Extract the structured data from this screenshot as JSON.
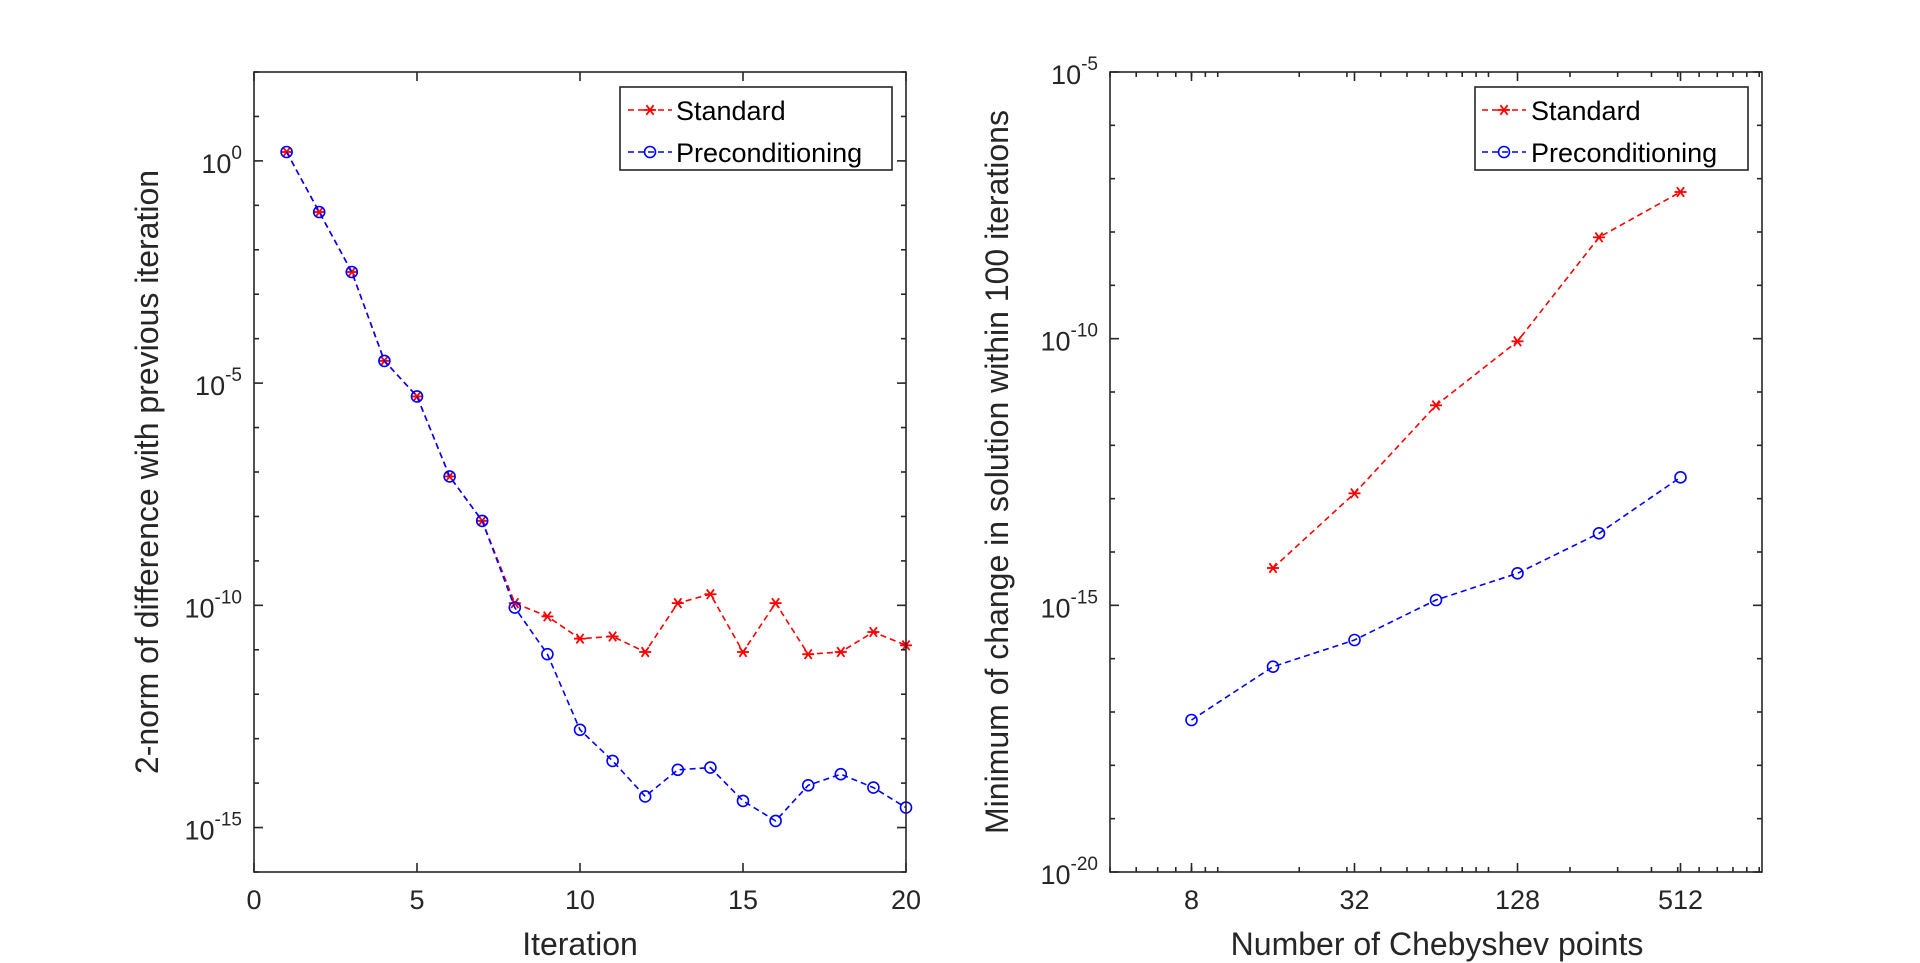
{
  "colors": {
    "standard": "#ff0000",
    "preconditioning": "#0000ff",
    "axis": "#262626"
  },
  "chart_data": [
    {
      "type": "line",
      "xlabel": "Iteration",
      "ylabel": "2-norm of difference with previous iteration",
      "x_scale": "linear",
      "y_scale": "log",
      "xlim": [
        0,
        20
      ],
      "ylim_exp": [
        -16,
        2
      ],
      "x_ticks": [
        0,
        5,
        10,
        15,
        20
      ],
      "y_ticks_exp": [
        -15,
        -10,
        -5,
        0
      ],
      "legend_position": "top-right",
      "series": [
        {
          "name": "Standard",
          "marker": "asterisk",
          "color": "#ff0000",
          "x": [
            1,
            2,
            3,
            4,
            5,
            6,
            7,
            8,
            9,
            10,
            11,
            12,
            13,
            14,
            15,
            16,
            17,
            18,
            19,
            20
          ],
          "y_exp": [
            0.2,
            -1.15,
            -2.5,
            -4.5,
            -5.3,
            -7.1,
            -8.1,
            -9.95,
            -10.25,
            -10.75,
            -10.7,
            -11.05,
            -9.95,
            -9.75,
            -11.05,
            -9.95,
            -11.1,
            -11.05,
            -10.6,
            -10.9
          ]
        },
        {
          "name": "Preconditioning",
          "marker": "circle",
          "color": "#0000ff",
          "x": [
            1,
            2,
            3,
            4,
            5,
            6,
            7,
            8,
            9,
            10,
            11,
            12,
            13,
            14,
            15,
            16,
            17,
            18,
            19,
            20
          ],
          "y_exp": [
            0.2,
            -1.15,
            -2.5,
            -4.5,
            -5.3,
            -7.1,
            -8.1,
            -10.05,
            -11.1,
            -12.8,
            -13.5,
            -14.3,
            -13.7,
            -13.65,
            -14.4,
            -14.85,
            -14.05,
            -13.8,
            -14.1,
            -14.55
          ]
        }
      ]
    },
    {
      "type": "line",
      "xlabel": "Number of Chebyshev points",
      "ylabel": "Minimum of change in solution within 100 iterations",
      "x_scale": "log2",
      "y_scale": "log",
      "xlim": [
        4,
        1024
      ],
      "ylim_exp": [
        -20,
        -5
      ],
      "x_ticks": [
        8,
        32,
        128,
        512
      ],
      "y_ticks_exp": [
        -20,
        -15,
        -10,
        -5
      ],
      "legend_position": "top-right",
      "series": [
        {
          "name": "Standard",
          "marker": "asterisk",
          "color": "#ff0000",
          "x": [
            16,
            32,
            64,
            128,
            256,
            512
          ],
          "y_exp": [
            -14.3,
            -12.9,
            -11.25,
            -10.05,
            -8.1,
            -7.25
          ]
        },
        {
          "name": "Preconditioning",
          "marker": "circle",
          "color": "#0000ff",
          "x": [
            8,
            16,
            32,
            64,
            128,
            256,
            512
          ],
          "y_exp": [
            -17.15,
            -16.15,
            -15.65,
            -14.9,
            -14.4,
            -13.65,
            -12.6
          ]
        }
      ]
    }
  ]
}
